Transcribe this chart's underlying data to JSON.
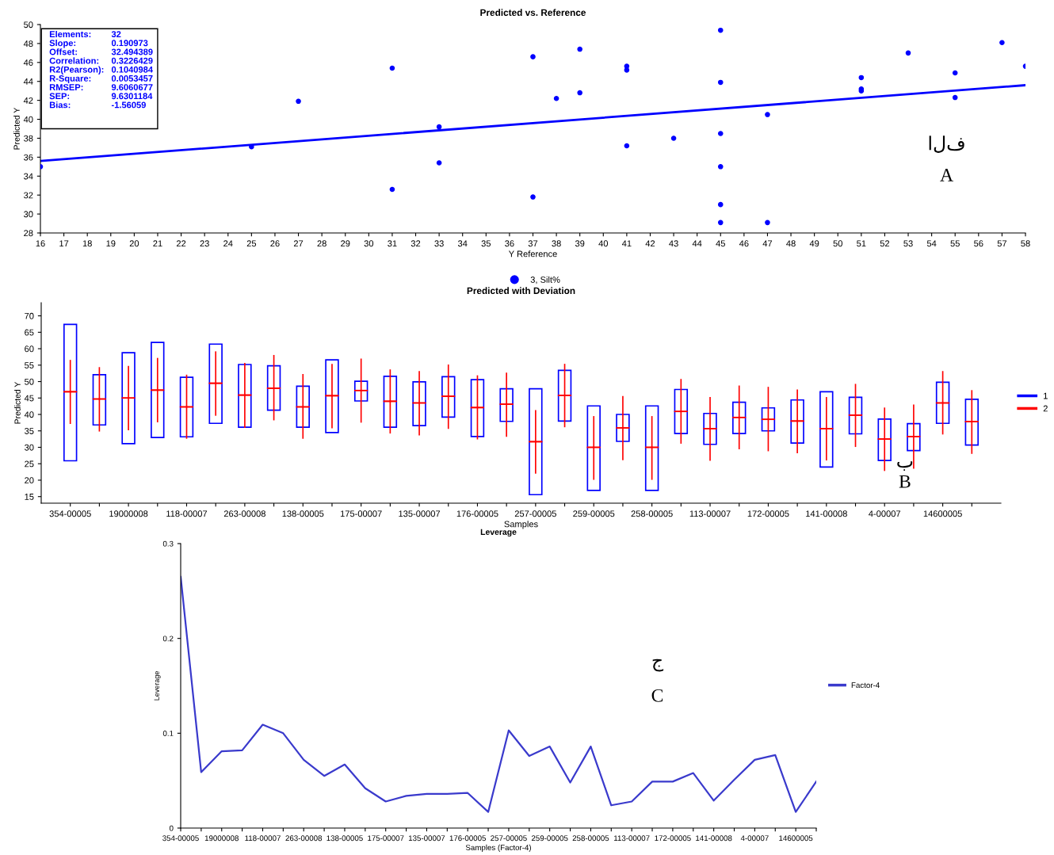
{
  "chart_data": [
    {
      "type": "scatter",
      "title": "Predicted vs. Reference",
      "xlabel": "Y Reference",
      "ylabel": "Predicted Y",
      "xlim": [
        16,
        58
      ],
      "xticks": [
        16,
        17,
        18,
        19,
        20,
        21,
        22,
        23,
        24,
        25,
        26,
        27,
        28,
        29,
        30,
        31,
        32,
        33,
        34,
        35,
        36,
        37,
        38,
        39,
        40,
        41,
        42,
        43,
        44,
        45,
        46,
        47,
        48,
        49,
        50,
        51,
        52,
        53,
        54,
        55,
        56,
        57,
        58
      ],
      "ylim": [
        28,
        50
      ],
      "yticks": [
        28,
        30,
        32,
        34,
        36,
        38,
        40,
        42,
        44,
        46,
        48,
        50
      ],
      "grid": false,
      "legend": "bottom",
      "series": [
        {
          "name": "3, Silt%",
          "type": "scatter",
          "marker": "circle",
          "color": "#0000ff",
          "x": [
            16,
            25,
            27,
            31,
            31,
            33,
            33,
            37,
            37,
            38,
            39,
            39,
            41,
            41,
            41,
            43,
            45,
            45,
            45,
            45,
            45,
            45,
            47,
            47,
            51,
            51,
            51,
            53,
            55,
            55,
            57,
            58
          ],
          "values": [
            35.0,
            37.1,
            41.9,
            45.4,
            32.6,
            39.2,
            35.4,
            46.6,
            31.8,
            42.2,
            47.4,
            42.8,
            45.6,
            45.2,
            37.2,
            38.0,
            49.4,
            43.9,
            38.5,
            35.0,
            31.0,
            29.1,
            40.5,
            29.1,
            44.4,
            43.2,
            43.0,
            47.0,
            44.9,
            42.3,
            48.1,
            45.6
          ]
        },
        {
          "type": "line",
          "color": "#0000ff",
          "x": [
            16,
            58
          ],
          "values": [
            35.6,
            43.6
          ]
        }
      ],
      "annotations": [
        "Elements:",
        "32",
        "Slope:",
        "0.190973",
        "Offset:",
        "32.494389",
        "Correlation:",
        "0.3226429",
        "R2(Pearson):",
        "0.1040984",
        "R-Square:",
        "0.0053457",
        "RMSEP:",
        "9.6060677",
        "SEP:",
        "9.6301184",
        "Bias:",
        "-1.56059",
        "الف",
        "A"
      ]
    },
    {
      "type": "bar",
      "title": "Predicted with Deviation",
      "xlabel": "Samples",
      "ylabel": "Predicted Y",
      "categories": [
        "354-00005",
        null,
        "19000008",
        null,
        "118-00007",
        null,
        "263-00008",
        null,
        "138-00005",
        null,
        "175-00007",
        null,
        "135-00007",
        null,
        "176-00005",
        null,
        "257-00005",
        null,
        "259-00005",
        null,
        "258-00005",
        null,
        "113-00007",
        null,
        "172-00005",
        null,
        "141-00008",
        null,
        "4-00007",
        null,
        "14600005",
        null
      ],
      "ylim": [
        13,
        74
      ],
      "yticks": [
        15,
        20,
        25,
        30,
        35,
        40,
        45,
        50,
        55,
        60,
        65,
        70
      ],
      "grid": false,
      "legend": "right",
      "series": [
        {
          "name": "1",
          "type": "bar",
          "color": "#0000ff",
          "base": [
            25.9,
            36.8,
            31.1,
            33.0,
            33.2,
            37.3,
            36.1,
            41.3,
            36.1,
            34.5,
            44.1,
            36.1,
            36.6,
            39.2,
            33.3,
            37.9,
            15.6,
            38.0,
            16.9,
            31.8,
            16.9,
            34.2,
            30.9,
            34.2,
            35.0,
            31.3,
            24.0,
            34.1,
            26.0,
            29.0,
            37.3,
            30.7
          ],
          "values": [
            41.5,
            15.3,
            27.7,
            28.9,
            18.1,
            24.1,
            19.1,
            13.5,
            12.5,
            22.1,
            6.0,
            15.5,
            13.3,
            12.3,
            17.3,
            9.9,
            32.2,
            15.4,
            25.7,
            8.2,
            25.7,
            13.4,
            9.4,
            9.5,
            7.0,
            13.1,
            22.9,
            11.1,
            12.6,
            8.2,
            12.5,
            13.9
          ]
        },
        {
          "name": "2",
          "type": "box",
          "color": "#ff0000",
          "boxes": [
            {
              "low": 37.3,
              "q1": 46.9,
              "median": 46.9,
              "q3": 46.9,
              "high": 56.4
            },
            {
              "low": 35.0,
              "q1": 44.7,
              "median": 44.7,
              "q3": 44.7,
              "high": 54.2
            },
            {
              "low": 35.4,
              "q1": 45.0,
              "median": 45.0,
              "q3": 45.0,
              "high": 54.6
            },
            {
              "low": 37.8,
              "q1": 47.4,
              "median": 47.4,
              "q3": 47.4,
              "high": 57.0
            },
            {
              "low": 32.8,
              "q1": 42.3,
              "median": 42.3,
              "q3": 42.3,
              "high": 51.9
            },
            {
              "low": 39.8,
              "q1": 49.5,
              "median": 49.5,
              "q3": 49.5,
              "high": 59.0
            },
            {
              "low": 36.1,
              "q1": 45.9,
              "median": 45.9,
              "q3": 45.9,
              "high": 55.5
            },
            {
              "low": 38.4,
              "q1": 48.0,
              "median": 48.0,
              "q3": 48.0,
              "high": 57.9
            },
            {
              "low": 32.8,
              "q1": 42.3,
              "median": 42.3,
              "q3": 42.3,
              "high": 52.1
            },
            {
              "low": 36.0,
              "q1": 45.7,
              "median": 45.7,
              "q3": 45.7,
              "high": 55.2
            },
            {
              "low": 37.7,
              "q1": 47.3,
              "median": 47.3,
              "q3": 47.3,
              "high": 56.8
            },
            {
              "low": 34.4,
              "q1": 44.0,
              "median": 44.0,
              "q3": 44.0,
              "high": 53.5
            },
            {
              "low": 33.8,
              "q1": 43.5,
              "median": 43.5,
              "q3": 43.5,
              "high": 53.0
            },
            {
              "low": 35.8,
              "q1": 45.5,
              "median": 45.5,
              "q3": 45.5,
              "high": 55.0
            },
            {
              "low": 32.6,
              "q1": 42.1,
              "median": 42.1,
              "q3": 42.1,
              "high": 51.7
            },
            {
              "low": 33.4,
              "q1": 43.1,
              "median": 43.1,
              "q3": 43.1,
              "high": 52.5
            },
            {
              "low": 22.2,
              "q1": 31.7,
              "median": 31.7,
              "q3": 31.7,
              "high": 41.1
            },
            {
              "low": 36.3,
              "q1": 45.8,
              "median": 45.8,
              "q3": 45.8,
              "high": 55.2
            },
            {
              "low": 20.3,
              "q1": 30.0,
              "median": 30.0,
              "q3": 30.0,
              "high": 39.3
            },
            {
              "low": 26.3,
              "q1": 35.9,
              "median": 35.9,
              "q3": 35.9,
              "high": 45.4
            },
            {
              "low": 20.3,
              "q1": 30.0,
              "median": 30.0,
              "q3": 30.0,
              "high": 39.3
            },
            {
              "low": 31.3,
              "q1": 40.9,
              "median": 40.9,
              "q3": 40.9,
              "high": 50.6
            },
            {
              "low": 26.1,
              "q1": 35.7,
              "median": 35.7,
              "q3": 35.7,
              "high": 45.1
            },
            {
              "low": 29.6,
              "q1": 39.1,
              "median": 39.1,
              "q3": 39.1,
              "high": 48.6
            },
            {
              "low": 29.0,
              "q1": 38.5,
              "median": 38.5,
              "q3": 38.5,
              "high": 48.2
            },
            {
              "low": 28.4,
              "q1": 38.0,
              "median": 38.0,
              "q3": 38.0,
              "high": 47.4
            },
            {
              "low": 26.2,
              "q1": 35.7,
              "median": 35.7,
              "q3": 35.7,
              "high": 45.1
            },
            {
              "low": 30.3,
              "q1": 39.8,
              "median": 39.8,
              "q3": 39.8,
              "high": 49.1
            },
            {
              "low": 23.0,
              "q1": 32.5,
              "median": 32.5,
              "q3": 32.5,
              "high": 41.9
            },
            {
              "low": 23.7,
              "q1": 33.3,
              "median": 33.3,
              "q3": 33.3,
              "high": 42.8
            },
            {
              "low": 34.1,
              "q1": 43.5,
              "median": 43.5,
              "q3": 43.5,
              "high": 53.0
            },
            {
              "low": 28.2,
              "q1": 37.8,
              "median": 37.8,
              "q3": 37.8,
              "high": 47.2
            }
          ]
        }
      ],
      "annotations": [
        "ب",
        "B"
      ]
    },
    {
      "type": "line",
      "title": "Leverage",
      "xlabel": "Samples (Factor-4)",
      "ylabel": "Leverage",
      "categories": [
        "354-00005",
        null,
        "19000008",
        null,
        "118-00007",
        null,
        "263-00008",
        null,
        "138-00005",
        null,
        "175-00007",
        null,
        "135-00007",
        null,
        "176-00005",
        null,
        "257-00005",
        null,
        "259-00005",
        null,
        "258-00005",
        null,
        "113-00007",
        null,
        "172-00005",
        null,
        "141-00008",
        null,
        "4-00007",
        null,
        "14600005",
        null
      ],
      "ylim": [
        0,
        0.3
      ],
      "yticks": [
        0,
        0.1,
        0.2,
        0.3
      ],
      "grid": false,
      "legend": "right",
      "marker": "none",
      "series": [
        {
          "name": "Factor-4",
          "color": "#3a3acc",
          "values": [
            0.265,
            0.059,
            0.081,
            0.082,
            0.109,
            0.1,
            0.072,
            0.055,
            0.067,
            0.042,
            0.028,
            0.034,
            0.036,
            0.036,
            0.037,
            0.017,
            0.103,
            0.076,
            0.086,
            0.048,
            0.086,
            0.024,
            0.028,
            0.049,
            0.049,
            0.058,
            0.029,
            0.051,
            0.072,
            0.077,
            0.017,
            0.049
          ]
        }
      ],
      "annotations": [
        "ج",
        "C"
      ]
    }
  ]
}
